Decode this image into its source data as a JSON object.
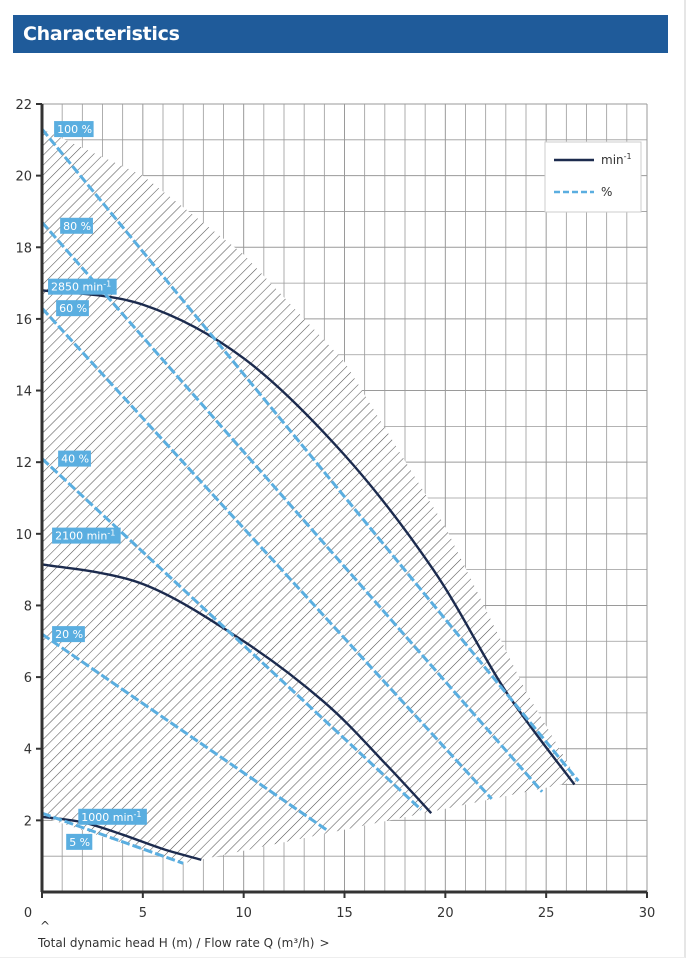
{
  "header": {
    "title": "Characteristics"
  },
  "colors": {
    "header_bg": "#1f5b9a",
    "speed_curve": "#1c2b4e",
    "efficiency_curve": "#5aaee0",
    "tag_bg": "#5aaee0",
    "grid": "#9a9a9a"
  },
  "chart_data": {
    "type": "line",
    "title": "",
    "xlabel": "Total dynamic head H (m) / Flow rate Q (m³/h)",
    "xlabel_marker": "^",
    "xlabel_suffix": ">",
    "ylabel": "",
    "xlim": [
      0,
      30
    ],
    "ylim": [
      0,
      22
    ],
    "x_ticks": [
      0,
      5,
      10,
      15,
      20,
      25,
      30
    ],
    "y_ticks": [
      2,
      4,
      6,
      8,
      10,
      12,
      14,
      16,
      18,
      20,
      22
    ],
    "grid": true,
    "legend": {
      "position": "top-right",
      "entries": [
        {
          "label": "min",
          "superscript": "-1",
          "style": "solid"
        },
        {
          "label": "%",
          "style": "dashed"
        }
      ]
    },
    "operating_area": {
      "hatched": true,
      "boundary": [
        [
          0,
          21.3
        ],
        [
          5,
          20.0
        ],
        [
          10,
          17.8
        ],
        [
          15,
          14.8
        ],
        [
          20,
          10.2
        ],
        [
          24,
          5.6
        ],
        [
          26.6,
          3.1
        ],
        [
          7,
          0.8
        ],
        [
          0,
          2.1
        ]
      ]
    },
    "series": [
      {
        "name": "2850 min",
        "kind": "speed",
        "x": [
          0,
          5,
          10,
          15,
          19.4,
          23,
          26.4
        ],
        "y": [
          16.8,
          16.4,
          14.9,
          12.2,
          9.0,
          5.6,
          3.0
        ]
      },
      {
        "name": "2100 min",
        "kind": "speed",
        "x": [
          0,
          5,
          10,
          14,
          17,
          19.3
        ],
        "y": [
          9.15,
          8.6,
          7.0,
          5.3,
          3.6,
          2.2
        ]
      },
      {
        "name": "1000 min",
        "kind": "speed",
        "x": [
          0,
          2,
          4,
          6,
          7.9
        ],
        "y": [
          2.1,
          1.95,
          1.6,
          1.2,
          0.9
        ]
      },
      {
        "name": "100 %",
        "kind": "efficiency",
        "x": [
          0,
          26.6
        ],
        "y": [
          21.3,
          3.1
        ]
      },
      {
        "name": "80 %",
        "kind": "efficiency",
        "x": [
          0,
          24.8
        ],
        "y": [
          18.7,
          2.8
        ]
      },
      {
        "name": "60 %",
        "kind": "efficiency",
        "x": [
          0,
          22.3
        ],
        "y": [
          16.3,
          2.6
        ]
      },
      {
        "name": "40 %",
        "kind": "efficiency",
        "x": [
          0,
          18.8
        ],
        "y": [
          12.1,
          2.3
        ]
      },
      {
        "name": "20 %",
        "kind": "efficiency",
        "x": [
          0,
          14.2
        ],
        "y": [
          7.2,
          1.7
        ]
      },
      {
        "name": "5 %",
        "kind": "efficiency",
        "x": [
          0,
          7.0
        ],
        "y": [
          2.2,
          0.8
        ]
      }
    ],
    "tags": [
      {
        "text": "100 %",
        "x": 0.6,
        "y": 21.3
      },
      {
        "text": "80 %",
        "x": 0.9,
        "y": 18.6
      },
      {
        "text": "2850 min",
        "superscript": "-1",
        "x": 0.3,
        "y": 16.9
      },
      {
        "text": "60 %",
        "x": 0.7,
        "y": 16.3
      },
      {
        "text": "40 %",
        "x": 0.8,
        "y": 12.1
      },
      {
        "text": "2100 min",
        "superscript": "-1",
        "x": 0.5,
        "y": 9.95
      },
      {
        "text": "20 %",
        "x": 0.5,
        "y": 7.2
      },
      {
        "text": "1000 min",
        "superscript": "-1",
        "x": 1.8,
        "y": 2.1
      },
      {
        "text": "5 %",
        "x": 1.2,
        "y": 1.4
      }
    ]
  }
}
